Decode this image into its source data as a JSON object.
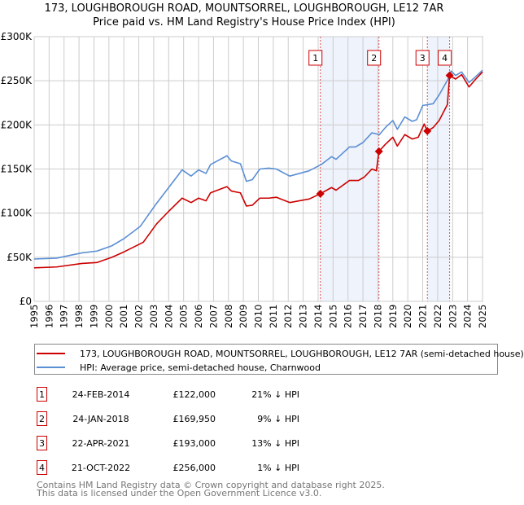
{
  "chart_data": {
    "type": "line",
    "title": "173, LOUGHBOROUGH ROAD, MOUNTSORREL, LOUGHBOROUGH, LE12 7AR",
    "subtitle": "Price paid vs. HM Land Registry's House Price Index (HPI)",
    "xlim": [
      1995,
      2025.1
    ],
    "ylim": [
      0,
      300000
    ],
    "y_ticks": [
      {
        "v": 0,
        "label": "£0"
      },
      {
        "v": 50000,
        "label": "£50K"
      },
      {
        "v": 100000,
        "label": "£100K"
      },
      {
        "v": 150000,
        "label": "£150K"
      },
      {
        "v": 200000,
        "label": "£200K"
      },
      {
        "v": 250000,
        "label": "£250K"
      },
      {
        "v": 300000,
        "label": "£300K"
      }
    ],
    "x_ticks": [
      "1995",
      "1996",
      "1997",
      "1998",
      "1999",
      "2000",
      "2001",
      "2002",
      "2003",
      "2004",
      "2005",
      "2006",
      "2007",
      "2008",
      "2009",
      "2010",
      "2011",
      "2012",
      "2013",
      "2014",
      "2015",
      "2016",
      "2017",
      "2018",
      "2019",
      "2020",
      "2021",
      "2022",
      "2023",
      "2024",
      "2025"
    ],
    "grid": true,
    "series": [
      {
        "name": "173, LOUGHBOROUGH ROAD, MOUNTSORREL, LOUGHBOROUGH, LE12 7AR (semi-detached house)",
        "color": "#cc0000",
        "x": [
          1995,
          1996.5,
          1998.2,
          1999.2,
          2000.2,
          2001,
          2002.3,
          2003.2,
          2004,
          2004.9,
          2005.5,
          2006,
          2006.5,
          2006.8,
          2007.9,
          2008.2,
          2008.8,
          2009.2,
          2009.6,
          2010.1,
          2010.7,
          2011.2,
          2012.1,
          2013.4,
          2014.15,
          2014.9,
          2015.2,
          2016.1,
          2016.7,
          2017.1,
          2017.6,
          2017.9,
          2018.07,
          2018.5,
          2019,
          2019.3,
          2019.8,
          2020.3,
          2020.7,
          2021.1,
          2021.31,
          2021.7,
          2022.1,
          2022.65,
          2022.8,
          2023.2,
          2023.6,
          2024.1,
          2024.5,
          2025
        ],
        "y": [
          38000,
          39000,
          43000,
          44000,
          50000,
          56000,
          67000,
          88000,
          102000,
          117000,
          112000,
          117000,
          114000,
          123000,
          130000,
          125000,
          123000,
          108000,
          109000,
          117000,
          117000,
          118000,
          112000,
          116000,
          122000,
          129000,
          126000,
          137000,
          137000,
          141000,
          150000,
          148000,
          169950,
          178000,
          186000,
          176000,
          189000,
          184000,
          186000,
          201000,
          193000,
          197000,
          205000,
          223000,
          256000,
          252000,
          257000,
          243000,
          251000,
          260000
        ]
      },
      {
        "name": "HPI: Average price, semi-detached house, Charnwood",
        "color": "#5b8fd4",
        "x": [
          1995,
          1996.5,
          1998.2,
          1999.2,
          2000.2,
          2001,
          2002.1,
          2003.1,
          2004,
          2004.9,
          2005.5,
          2006,
          2006.5,
          2006.8,
          2007.9,
          2008.2,
          2008.8,
          2009.2,
          2009.6,
          2010.1,
          2010.7,
          2011.2,
          2012.1,
          2013.4,
          2014.2,
          2014.9,
          2015.2,
          2016.1,
          2016.5,
          2017,
          2017.6,
          2018.1,
          2018.5,
          2019,
          2019.3,
          2019.8,
          2020.3,
          2020.6,
          2021,
          2021.7,
          2022.1,
          2022.7,
          2022.9,
          2023.2,
          2023.6,
          2024.1,
          2024.5,
          2025
        ],
        "y": [
          48000,
          49000,
          55000,
          57000,
          63000,
          71000,
          85000,
          109000,
          129000,
          149000,
          142000,
          149000,
          145000,
          155000,
          165000,
          159000,
          156000,
          136000,
          138000,
          150000,
          151000,
          150000,
          142000,
          148000,
          155000,
          164000,
          161000,
          175000,
          175000,
          180000,
          191000,
          189000,
          197000,
          205000,
          195000,
          209000,
          204000,
          206000,
          222000,
          224000,
          234000,
          252000,
          261000,
          256000,
          260000,
          248000,
          254000,
          262000
        ]
      }
    ],
    "sales": [
      {
        "label": "1",
        "x": 2014.15,
        "price": 122000,
        "date": "24-FEB-2014",
        "price_text": "£122,000",
        "hpi_text": "21% ↓ HPI"
      },
      {
        "label": "2",
        "x": 2018.07,
        "price": 169950,
        "date": "24-JAN-2018",
        "price_text": "£169,950",
        "hpi_text": "9% ↓ HPI"
      },
      {
        "label": "3",
        "x": 2021.31,
        "price": 193000,
        "date": "22-APR-2021",
        "price_text": "£193,000",
        "hpi_text": "13% ↓ HPI"
      },
      {
        "label": "4",
        "x": 2022.8,
        "price": 256000,
        "date": "21-OCT-2022",
        "price_text": "£256,000",
        "hpi_text": "1% ↓ HPI"
      }
    ],
    "shaded_ranges": [
      [
        2014.15,
        2018.07
      ],
      [
        2021.31,
        2022.8
      ]
    ]
  },
  "legend": {
    "red": "173, LOUGHBOROUGH ROAD, MOUNTSORREL, LOUGHBOROUGH, LE12 7AR (semi-detached house)",
    "blue": "HPI: Average price, semi-detached house, Charnwood"
  },
  "footer": {
    "line1": "Contains HM Land Registry data © Crown copyright and database right 2025.",
    "line2": "This data is licensed under the Open Government Licence v3.0."
  }
}
